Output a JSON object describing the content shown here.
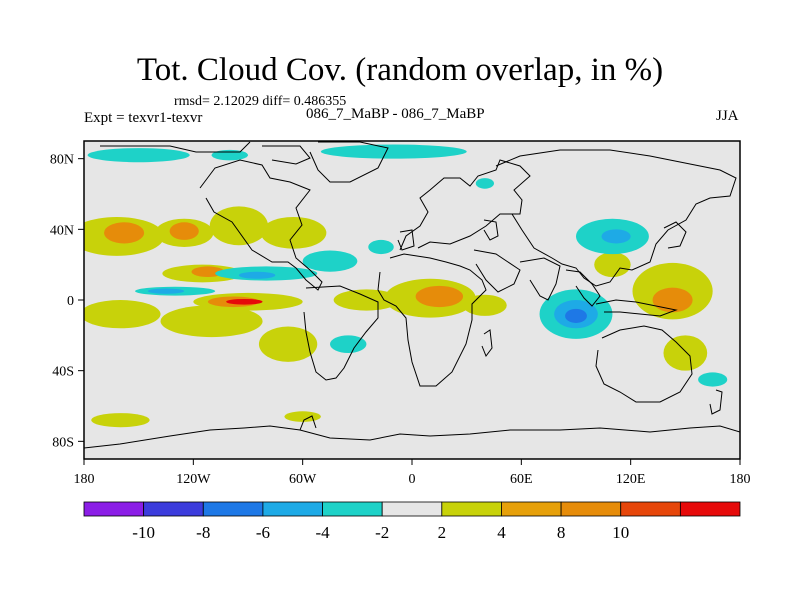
{
  "header": {
    "title": "Tot. Cloud Cov. (random overlap, in %)",
    "stats": "rmsd= 2.12029 diff= 0.486355",
    "experiment": "Expt = texvr1-texvr",
    "cases": "086_7_MaBP - 086_7_MaBP",
    "season": "JJA"
  },
  "axes": {
    "lat_ticks": [
      {
        "value": 80,
        "label": "80N"
      },
      {
        "value": 40,
        "label": "40N"
      },
      {
        "value": 0,
        "label": "0"
      },
      {
        "value": -40,
        "label": "40S"
      },
      {
        "value": -80,
        "label": "80S"
      }
    ],
    "lon_ticks": [
      {
        "value": -180,
        "label": "180"
      },
      {
        "value": -120,
        "label": "120W"
      },
      {
        "value": -60,
        "label": "60W"
      },
      {
        "value": 0,
        "label": "0"
      },
      {
        "value": 60,
        "label": "60E"
      },
      {
        "value": 120,
        "label": "120E"
      },
      {
        "value": 180,
        "label": "180"
      }
    ],
    "lon_range": [
      -180,
      180
    ],
    "lat_range": [
      -90,
      90
    ]
  },
  "colorbar": {
    "colors": [
      "#8b1ee6",
      "#3c3cdc",
      "#1e78e6",
      "#1eaae6",
      "#1ed2c8",
      "#e6e6e6",
      "#c8d20a",
      "#e6a00a",
      "#e68c0a",
      "#e6460a",
      "#e60a0a"
    ],
    "labels": [
      {
        "index": 1,
        "text": "-10"
      },
      {
        "index": 2,
        "text": "-8"
      },
      {
        "index": 3,
        "text": "-6"
      },
      {
        "index": 4,
        "text": "-4"
      },
      {
        "index": 5,
        "text": "-2"
      },
      {
        "index": 6,
        "text": "2"
      },
      {
        "index": 7,
        "text": "4"
      },
      {
        "index": 8,
        "text": "8"
      },
      {
        "index": 9,
        "text": "10"
      }
    ]
  },
  "map": {
    "background": "#e6e6e6",
    "anomaly_regions": [
      {
        "name": "pos-anomaly-subtropical-north-pacific",
        "lon": -162,
        "lat": 36,
        "rlon": 26,
        "rlat": 11,
        "level": "4"
      },
      {
        "name": "pos-anomaly-subtropical-north-pacific-core",
        "lon": -158,
        "lat": 38,
        "rlon": 11,
        "rlat": 6,
        "level": "8"
      },
      {
        "name": "pos-anomaly-north-pacific-east",
        "lon": -125,
        "lat": 38,
        "rlon": 16,
        "rlat": 8,
        "level": "4"
      },
      {
        "name": "pos-anomaly-north-pacific-east-core",
        "lon": -125,
        "lat": 39,
        "rlon": 8,
        "rlat": 5,
        "level": "8"
      },
      {
        "name": "pos-anomaly-north-america",
        "lon": -95,
        "lat": 42,
        "rlon": 16,
        "rlat": 11,
        "level": "4"
      },
      {
        "name": "pos-anomaly-north-atlantic",
        "lon": -65,
        "lat": 38,
        "rlon": 18,
        "rlat": 9,
        "level": "4"
      },
      {
        "name": "pos-anomaly-central-pacific",
        "lon": -115,
        "lat": 15,
        "rlon": 22,
        "rlat": 5,
        "level": "4"
      },
      {
        "name": "pos-anomaly-central-pacific-core",
        "lon": -112,
        "lat": 16,
        "rlon": 9,
        "rlat": 3,
        "level": "8"
      },
      {
        "name": "pos-anomaly-west-pacific-itcz",
        "lon": -160,
        "lat": -8,
        "rlon": 22,
        "rlat": 8,
        "level": "4"
      },
      {
        "name": "pos-anomaly-south-pacific-convergence",
        "lon": -110,
        "lat": -12,
        "rlon": 28,
        "rlat": 9,
        "level": "4"
      },
      {
        "name": "pos-anomaly-east-pacific-band",
        "lon": -90,
        "lat": -1,
        "rlon": 30,
        "rlat": 5,
        "level": "4"
      },
      {
        "name": "pos-anomaly-east-pacific-orange",
        "lon": -98,
        "lat": -1,
        "rlon": 14,
        "rlat": 3,
        "level": "8"
      },
      {
        "name": "pos-anomaly-east-pacific-max",
        "lon": -92,
        "lat": -1,
        "rlon": 10,
        "rlat": 1.6,
        "level": "10"
      },
      {
        "name": "pos-anomaly-tropical-atlantic",
        "lon": -25,
        "lat": 0,
        "rlon": 18,
        "rlat": 6,
        "level": "4"
      },
      {
        "name": "pos-anomaly-africa",
        "lon": 10,
        "lat": 1,
        "rlon": 25,
        "rlat": 11,
        "level": "4"
      },
      {
        "name": "pos-anomaly-africa-core",
        "lon": 15,
        "lat": 2,
        "rlon": 13,
        "rlat": 6,
        "level": "8"
      },
      {
        "name": "pos-anomaly-indian-ocean-west",
        "lon": 40,
        "lat": -3,
        "rlon": 12,
        "rlat": 6,
        "level": "4"
      },
      {
        "name": "pos-anomaly-west-pacific",
        "lon": 143,
        "lat": 5,
        "rlon": 22,
        "rlat": 16,
        "level": "4"
      },
      {
        "name": "pos-anomaly-west-pacific-core",
        "lon": 143,
        "lat": 0,
        "rlon": 11,
        "rlat": 7,
        "level": "8"
      },
      {
        "name": "pos-anomaly-south-pacific-east",
        "lon": 150,
        "lat": -30,
        "rlon": 12,
        "rlat": 10,
        "level": "4"
      },
      {
        "name": "pos-anomaly-south-america",
        "lon": -68,
        "lat": -25,
        "rlon": 16,
        "rlat": 10,
        "level": "4"
      },
      {
        "name": "pos-anomaly-southern-ocean-a",
        "lon": -160,
        "lat": -68,
        "rlon": 16,
        "rlat": 4,
        "level": "4"
      },
      {
        "name": "pos-anomaly-southern-ocean-b",
        "lon": -60,
        "lat": -66,
        "rlon": 10,
        "rlat": 3,
        "level": "4"
      },
      {
        "name": "pos-anomaly-south-asia",
        "lon": 110,
        "lat": 20,
        "rlon": 10,
        "rlat": 7,
        "level": "4"
      },
      {
        "name": "neg-anomaly-arctic-a",
        "lon": -150,
        "lat": 82,
        "rlon": 28,
        "rlat": 4,
        "level": "-2"
      },
      {
        "name": "neg-anomaly-arctic-b",
        "lon": -100,
        "lat": 82,
        "rlon": 10,
        "rlat": 3,
        "level": "-2"
      },
      {
        "name": "neg-anomaly-arctic-c",
        "lon": -10,
        "lat": 84,
        "rlon": 40,
        "rlat": 4,
        "level": "-2"
      },
      {
        "name": "neg-anomaly-atlantic-band",
        "lon": -80,
        "lat": 15,
        "rlon": 28,
        "rlat": 4,
        "level": "-2"
      },
      {
        "name": "neg-anomaly-atlantic-band-core",
        "lon": -85,
        "lat": 14,
        "rlon": 10,
        "rlat": 2,
        "level": "-4"
      },
      {
        "name": "neg-anomaly-pacific-strip",
        "lon": -130,
        "lat": 5,
        "rlon": 22,
        "rlat": 2.5,
        "level": "-2"
      },
      {
        "name": "neg-anomaly-pacific-strip-core",
        "lon": -135,
        "lat": 5,
        "rlon": 10,
        "rlat": 1.5,
        "level": "-4"
      },
      {
        "name": "neg-anomaly-north-atlantic",
        "lon": -45,
        "lat": 22,
        "rlon": 15,
        "rlat": 6,
        "level": "-2"
      },
      {
        "name": "neg-anomaly-eurasia",
        "lon": -17,
        "lat": 30,
        "rlon": 7,
        "rlat": 4,
        "level": "-2"
      },
      {
        "name": "neg-anomaly-central-asia",
        "lon": 40,
        "lat": 66,
        "rlon": 5,
        "rlat": 3,
        "level": "-2"
      },
      {
        "name": "neg-anomaly-china",
        "lon": 110,
        "lat": 36,
        "rlon": 20,
        "rlat": 10,
        "level": "-2"
      },
      {
        "name": "neg-anomaly-china-core",
        "lon": 112,
        "lat": 36,
        "rlon": 8,
        "rlat": 4,
        "level": "-4"
      },
      {
        "name": "neg-anomaly-indian-ocean",
        "lon": 90,
        "lat": -8,
        "rlon": 20,
        "rlat": 14,
        "level": "-2"
      },
      {
        "name": "neg-anomaly-indian-ocean-mid",
        "lon": 90,
        "lat": -8,
        "rlon": 12,
        "rlat": 8,
        "level": "-4"
      },
      {
        "name": "neg-anomaly-indian-ocean-core",
        "lon": 90,
        "lat": -9,
        "rlon": 6,
        "rlat": 4,
        "level": "-6"
      },
      {
        "name": "neg-anomaly-south-atlantic",
        "lon": -35,
        "lat": -25,
        "rlon": 10,
        "rlat": 5,
        "level": "-2"
      },
      {
        "name": "neg-anomaly-south-pacific-west",
        "lon": 165,
        "lat": -45,
        "rlon": 8,
        "rlat": 4,
        "level": "-2"
      }
    ],
    "level_colors": {
      "-6": "#1e78e6",
      "-4": "#1eaae6",
      "-2": "#1ed2c8",
      "4": "#c8d20a",
      "8": "#e68c0a",
      "10": "#e60a0a"
    }
  }
}
